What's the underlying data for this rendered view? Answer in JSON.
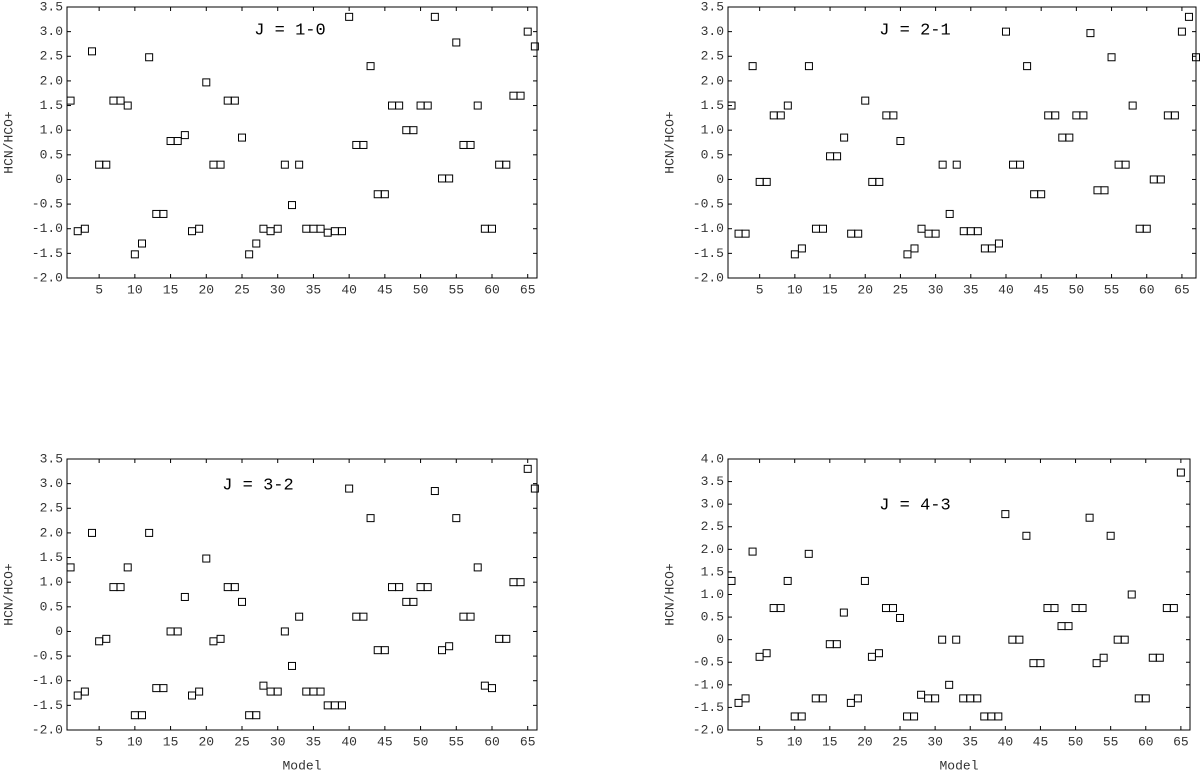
{
  "chart_data": [
    {
      "type": "scatter",
      "title": "J = 1-0",
      "y_label": "HCN/HCO+",
      "color": "#000000",
      "xlim": [
        0.5,
        66.3
      ],
      "ylim": [
        -2,
        3.5
      ],
      "xticks": [
        5,
        10,
        15,
        20,
        25,
        30,
        35,
        40,
        45,
        50,
        55,
        60,
        65
      ],
      "yticks": [
        3.5,
        {
          "value": 3,
          "label": "3.0"
        },
        2.5,
        {
          "value": 2,
          "label": "2.0"
        },
        1.5,
        {
          "value": 1,
          "label": "1.0"
        },
        0.5,
        0,
        -0.5,
        {
          "value": -1,
          "label": "-1.0"
        },
        -1.5,
        {
          "value": -2,
          "label": "-2.0"
        }
      ],
      "x": [
        1,
        2,
        3,
        4,
        5,
        6,
        7,
        8,
        9,
        10,
        11,
        12,
        13,
        14,
        15,
        16,
        17,
        18,
        19,
        20,
        21,
        22,
        23,
        24,
        25,
        26,
        27,
        28,
        29,
        30,
        31,
        32,
        33,
        34,
        35,
        36,
        37,
        38,
        39,
        40,
        41,
        42,
        43,
        44,
        45,
        46,
        47,
        48,
        49,
        50,
        51,
        52,
        53,
        54,
        55,
        56,
        57,
        58,
        59,
        60,
        61,
        62,
        63,
        64,
        65,
        66
      ],
      "values": [
        1.6,
        -1.05,
        -1.0,
        2.6,
        0.3,
        0.3,
        1.6,
        1.6,
        1.5,
        -1.52,
        -1.3,
        2.48,
        -0.7,
        -0.7,
        0.78,
        0.78,
        0.9,
        -1.05,
        -1.0,
        1.97,
        0.3,
        0.3,
        1.6,
        1.6,
        0.85,
        -1.52,
        -1.3,
        -1.0,
        -1.05,
        -1.0,
        0.3,
        -0.52,
        0.3,
        -1.0,
        -1.0,
        -1.0,
        -1.08,
        -1.05,
        -1.05,
        3.3,
        0.7,
        0.7,
        2.3,
        -0.3,
        -0.3,
        1.5,
        1.5,
        1.0,
        1.0,
        1.5,
        1.5,
        3.3,
        0.02,
        0.02,
        2.78,
        0.7,
        0.7,
        1.5,
        -1.0,
        -1.0,
        0.3,
        0.3,
        1.7,
        1.7,
        3.0,
        2.7
      ]
    },
    {
      "type": "scatter",
      "title": "J = 2-1",
      "y_label": "HCN/HCO+",
      "color": "#000000",
      "xlim": [
        0.5,
        67
      ],
      "ylim": [
        -2,
        3.5
      ],
      "xticks": [
        5,
        10,
        15,
        20,
        25,
        30,
        35,
        40,
        45,
        50,
        55,
        60,
        65
      ],
      "yticks": [
        3.5,
        {
          "value": 3,
          "label": "3.0"
        },
        2.5,
        {
          "value": 2,
          "label": "2.0"
        },
        1.5,
        {
          "value": 1,
          "label": "1.0"
        },
        0.5,
        0,
        -0.5,
        {
          "value": -1,
          "label": "-1.0"
        },
        -1.5,
        {
          "value": -2,
          "label": "-2.0"
        }
      ],
      "x": [
        1,
        2,
        3,
        4,
        5,
        6,
        7,
        8,
        9,
        10,
        11,
        12,
        13,
        14,
        15,
        16,
        17,
        18,
        19,
        20,
        21,
        22,
        23,
        24,
        25,
        26,
        27,
        28,
        29,
        30,
        31,
        32,
        33,
        34,
        35,
        36,
        37,
        38,
        39,
        40,
        41,
        42,
        43,
        44,
        45,
        46,
        47,
        48,
        49,
        50,
        51,
        52,
        53,
        54,
        55,
        56,
        57,
        58,
        59,
        60,
        61,
        62,
        63,
        64,
        65,
        66,
        67
      ],
      "values": [
        1.5,
        -1.1,
        -1.1,
        2.3,
        -0.05,
        -0.05,
        1.3,
        1.3,
        1.5,
        -1.52,
        -1.4,
        2.3,
        -1.0,
        -1.0,
        0.47,
        0.47,
        0.85,
        -1.1,
        -1.1,
        1.6,
        -0.05,
        -0.05,
        1.3,
        1.3,
        0.78,
        -1.52,
        -1.4,
        -1.0,
        -1.1,
        -1.1,
        0.3,
        -0.7,
        0.3,
        -1.05,
        -1.05,
        -1.05,
        -1.4,
        -1.4,
        -1.3,
        3.0,
        0.3,
        0.3,
        2.3,
        -0.3,
        -0.3,
        1.3,
        1.3,
        0.85,
        0.85,
        1.3,
        1.3,
        2.97,
        -0.22,
        -0.22,
        2.48,
        0.3,
        0.3,
        1.5,
        -1.0,
        -1.0,
        0.0,
        0.0,
        1.3,
        1.3,
        3.0,
        3.3,
        2.48
      ]
    },
    {
      "type": "scatter",
      "title": "J = 3-2",
      "y_label": "HCN/HCO+",
      "x_label": "Model",
      "color": "#000000",
      "xlim": [
        0.5,
        66.3
      ],
      "ylim": [
        -2,
        3.5
      ],
      "xticks": [
        5,
        10,
        15,
        20,
        25,
        30,
        35,
        40,
        45,
        50,
        55,
        60,
        65
      ],
      "yticks": [
        3.5,
        {
          "value": 3,
          "label": "3.0"
        },
        2.5,
        {
          "value": 2,
          "label": "2.0"
        },
        1.5,
        {
          "value": 1,
          "label": "1.0"
        },
        0.5,
        0,
        -0.5,
        {
          "value": -1,
          "label": "-1.0"
        },
        -1.5,
        {
          "value": -2,
          "label": "-2.0"
        }
      ],
      "x": [
        1,
        2,
        3,
        4,
        5,
        6,
        7,
        8,
        9,
        10,
        11,
        12,
        13,
        14,
        15,
        16,
        17,
        18,
        19,
        20,
        21,
        22,
        23,
        24,
        25,
        26,
        27,
        28,
        29,
        30,
        31,
        32,
        33,
        34,
        35,
        36,
        37,
        38,
        39,
        40,
        41,
        42,
        43,
        44,
        45,
        46,
        47,
        48,
        49,
        50,
        51,
        52,
        53,
        54,
        55,
        56,
        57,
        58,
        59,
        60,
        61,
        62,
        63,
        64,
        65,
        66
      ],
      "values": [
        1.3,
        -1.3,
        -1.22,
        2.0,
        -0.2,
        -0.15,
        0.9,
        0.9,
        1.3,
        -1.7,
        -1.7,
        2.0,
        -1.15,
        -1.15,
        0.0,
        0.0,
        0.7,
        -1.3,
        -1.22,
        1.48,
        -0.2,
        -0.15,
        0.9,
        0.9,
        0.6,
        -1.7,
        -1.7,
        -1.1,
        -1.22,
        -1.22,
        0.0,
        -0.7,
        0.3,
        -1.22,
        -1.22,
        -1.22,
        -1.5,
        -1.5,
        -1.5,
        2.9,
        0.3,
        0.3,
        2.3,
        -0.38,
        -0.38,
        0.9,
        0.9,
        0.6,
        0.6,
        0.9,
        0.9,
        2.85,
        -0.38,
        -0.3,
        2.3,
        0.3,
        0.3,
        1.3,
        -1.1,
        -1.15,
        -0.15,
        -0.15,
        1.0,
        1.0,
        3.3,
        2.9
      ]
    },
    {
      "type": "scatter",
      "title": "J = 4-3",
      "y_label": "HCN/HCO+",
      "x_label": "Model",
      "color": "#000000",
      "xlim": [
        0.5,
        66.3
      ],
      "ylim": [
        -2,
        4
      ],
      "xticks": [
        5,
        10,
        15,
        20,
        25,
        30,
        35,
        40,
        45,
        50,
        55,
        60,
        65
      ],
      "yticks": [
        {
          "value": 4,
          "label": "4.0"
        },
        3.5,
        {
          "value": 3,
          "label": "3.0"
        },
        2.5,
        {
          "value": 2,
          "label": "2.0"
        },
        1.5,
        {
          "value": 1,
          "label": "1.0"
        },
        0.5,
        0,
        -0.5,
        {
          "value": -1,
          "label": "-1.0"
        },
        -1.5,
        {
          "value": -2,
          "label": "-2.0"
        }
      ],
      "x": [
        1,
        2,
        3,
        4,
        5,
        6,
        7,
        8,
        9,
        10,
        11,
        12,
        13,
        14,
        15,
        16,
        17,
        18,
        19,
        20,
        21,
        22,
        23,
        24,
        25,
        26,
        27,
        28,
        29,
        30,
        31,
        32,
        33,
        34,
        35,
        36,
        37,
        38,
        39,
        40,
        41,
        42,
        43,
        44,
        45,
        46,
        47,
        48,
        49,
        50,
        51,
        52,
        53,
        54,
        55,
        56,
        57,
        58,
        59,
        60,
        61,
        62,
        63,
        64,
        65
      ],
      "values": [
        1.3,
        -1.4,
        -1.3,
        1.95,
        -0.38,
        -0.3,
        0.7,
        0.7,
        1.3,
        -1.7,
        -1.7,
        1.9,
        -1.3,
        -1.3,
        -0.1,
        -0.1,
        0.6,
        -1.4,
        -1.3,
        1.3,
        -0.38,
        -0.3,
        0.7,
        0.7,
        0.48,
        -1.7,
        -1.7,
        -1.22,
        -1.3,
        -1.3,
        0.0,
        -1.0,
        0.0,
        -1.3,
        -1.3,
        -1.3,
        -1.7,
        -1.7,
        -1.7,
        2.78,
        0.0,
        0.0,
        2.3,
        -0.52,
        -0.52,
        0.7,
        0.7,
        0.3,
        0.3,
        0.7,
        0.7,
        2.7,
        -0.52,
        -0.4,
        2.3,
        0.0,
        0.0,
        1.0,
        -1.3,
        -1.3,
        -0.4,
        -0.4,
        0.7,
        0.7,
        3.7
      ]
    }
  ]
}
